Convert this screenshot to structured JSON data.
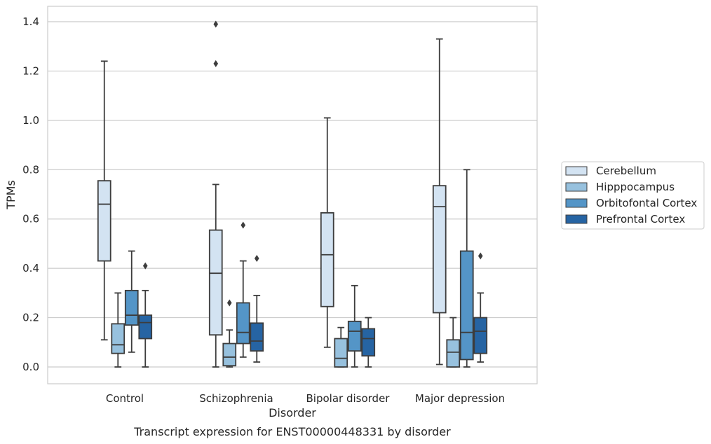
{
  "chart_data": {
    "type": "box",
    "caption": "Transcript expression for ENST00000448331 by disorder",
    "xlabel": "Disorder",
    "ylabel": "TPMs",
    "ylim": [
      -0.065,
      1.46
    ],
    "yticks": [
      0.0,
      0.2,
      0.4,
      0.6,
      0.8,
      1.0,
      1.2,
      1.4
    ],
    "ytick_labels": [
      "0.0",
      "0.2",
      "0.4",
      "0.6",
      "0.8",
      "1.0",
      "1.2",
      "1.4"
    ],
    "grid": true,
    "legend_position": "right",
    "categories": [
      "Control",
      "Schizophrenia",
      "Bipolar disorder",
      "Major depression"
    ],
    "series": [
      {
        "name": "Cerebellum",
        "color": "#d3e3f2",
        "boxes": [
          {
            "whislo": 0.11,
            "q1": 0.43,
            "med": 0.66,
            "q3": 0.755,
            "whishi": 1.24,
            "fliers": []
          },
          {
            "whislo": 0.0,
            "q1": 0.13,
            "med": 0.38,
            "q3": 0.555,
            "whishi": 0.74,
            "fliers": [
              1.23,
              1.39
            ]
          },
          {
            "whislo": 0.08,
            "q1": 0.245,
            "med": 0.455,
            "q3": 0.625,
            "whishi": 1.01,
            "fliers": []
          },
          {
            "whislo": 0.01,
            "q1": 0.22,
            "med": 0.65,
            "q3": 0.735,
            "whishi": 1.33,
            "fliers": []
          }
        ]
      },
      {
        "name": "Hipppocampus",
        "color": "#97c1de",
        "boxes": [
          {
            "whislo": 0.0,
            "q1": 0.055,
            "med": 0.09,
            "q3": 0.175,
            "whishi": 0.3,
            "fliers": []
          },
          {
            "whislo": 0.0,
            "q1": 0.005,
            "med": 0.04,
            "q3": 0.095,
            "whishi": 0.15,
            "fliers": [
              0.26
            ]
          },
          {
            "whislo": 0.0,
            "q1": 0.0,
            "med": 0.035,
            "q3": 0.115,
            "whishi": 0.16,
            "fliers": []
          },
          {
            "whislo": 0.0,
            "q1": 0.0,
            "med": 0.06,
            "q3": 0.11,
            "whishi": 0.2,
            "fliers": []
          }
        ]
      },
      {
        "name": "Orbitofontal Cortex",
        "color": "#5495c7",
        "boxes": [
          {
            "whislo": 0.06,
            "q1": 0.17,
            "med": 0.21,
            "q3": 0.31,
            "whishi": 0.47,
            "fliers": []
          },
          {
            "whislo": 0.04,
            "q1": 0.095,
            "med": 0.14,
            "q3": 0.26,
            "whishi": 0.43,
            "fliers": [
              0.575
            ]
          },
          {
            "whislo": 0.0,
            "q1": 0.065,
            "med": 0.145,
            "q3": 0.185,
            "whishi": 0.33,
            "fliers": []
          },
          {
            "whislo": 0.0,
            "q1": 0.03,
            "med": 0.14,
            "q3": 0.47,
            "whishi": 0.8,
            "fliers": []
          }
        ]
      },
      {
        "name": "Prefrontal Cortex",
        "color": "#2664a3",
        "boxes": [
          {
            "whislo": 0.0,
            "q1": 0.115,
            "med": 0.18,
            "q3": 0.21,
            "whishi": 0.31,
            "fliers": [
              0.41
            ]
          },
          {
            "whislo": 0.02,
            "q1": 0.065,
            "med": 0.105,
            "q3": 0.178,
            "whishi": 0.29,
            "fliers": [
              0.44
            ]
          },
          {
            "whislo": 0.0,
            "q1": 0.045,
            "med": 0.115,
            "q3": 0.155,
            "whishi": 0.2,
            "fliers": []
          },
          {
            "whislo": 0.02,
            "q1": 0.055,
            "med": 0.145,
            "q3": 0.2,
            "whishi": 0.3,
            "fliers": [
              0.45
            ]
          }
        ]
      }
    ]
  }
}
